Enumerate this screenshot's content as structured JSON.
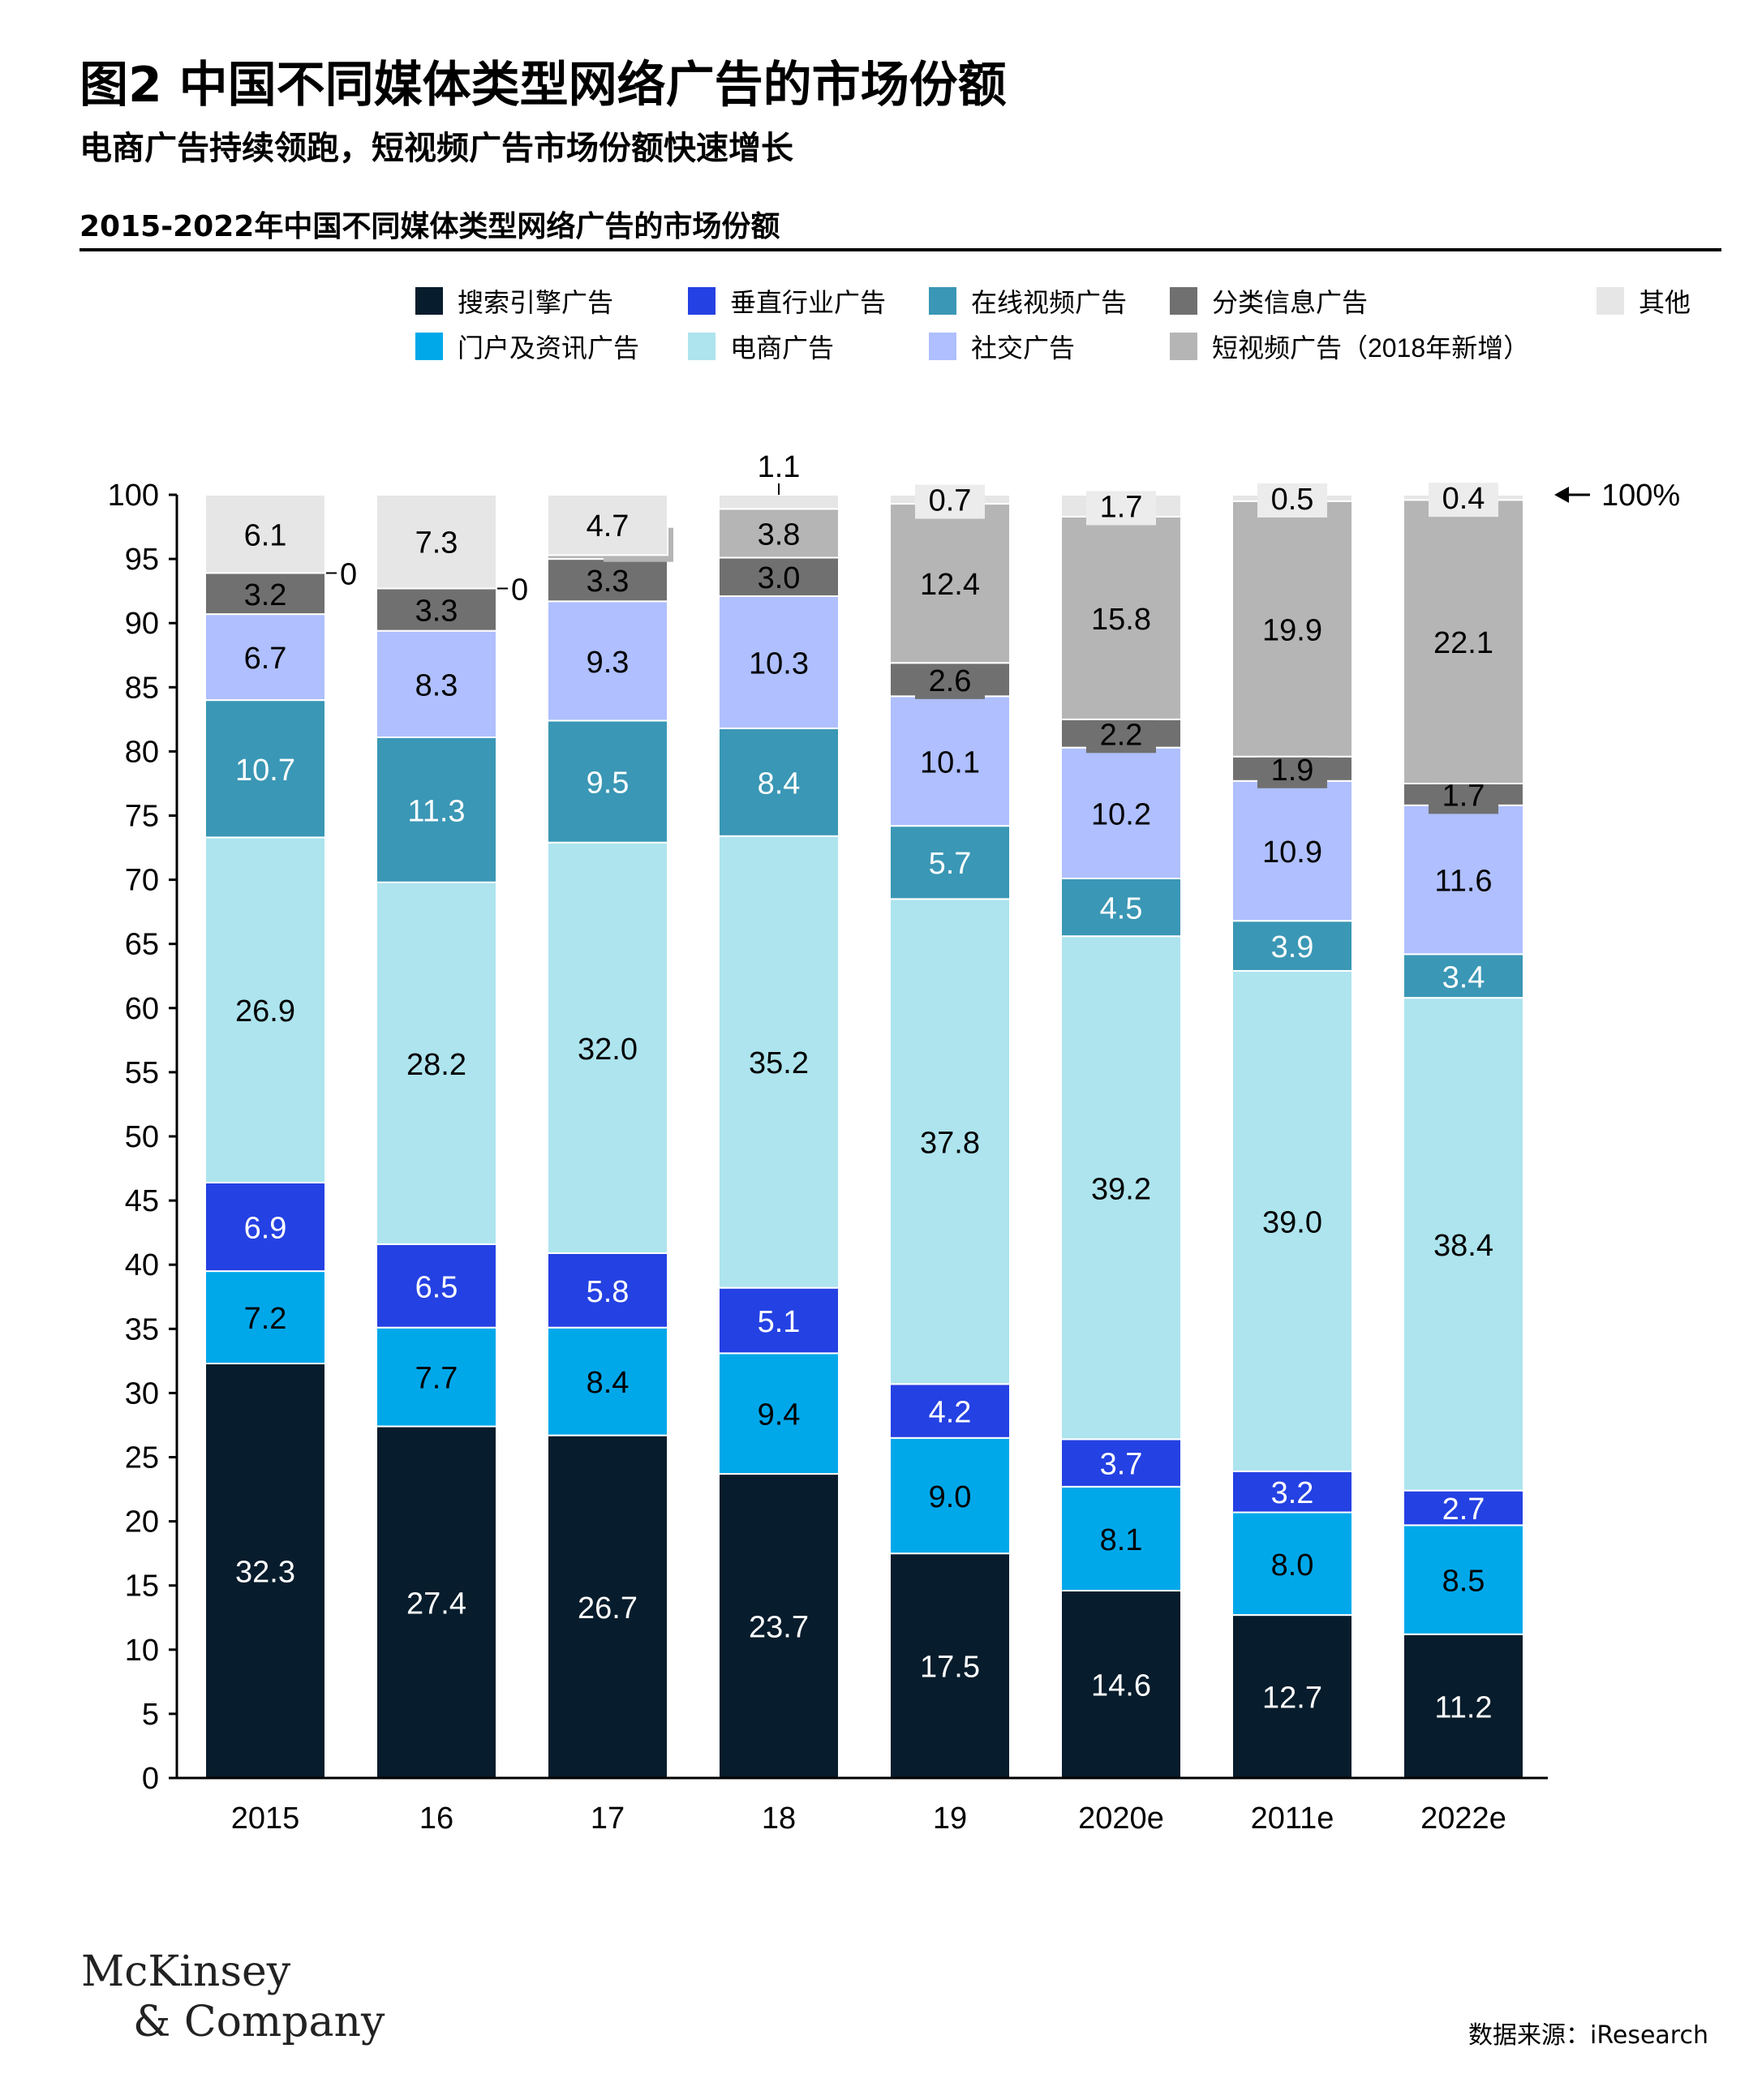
{
  "header": {
    "title": "图2 中国不同媒体类型网络广告的市场份额",
    "subtitle": "电商广告持续领跑，短视频广告市场份额快速增长",
    "chart_heading": "2015-2022年中国不同媒体类型网络广告的市场份额"
  },
  "footer": {
    "logo_line1": "McKinsey",
    "logo_line2": "& Company",
    "source": "数据来源：iResearch"
  },
  "chart_data": {
    "type": "bar",
    "stacked": true,
    "categories": [
      "2015",
      "16",
      "17",
      "18",
      "19",
      "2020e",
      "2011e",
      "2022e"
    ],
    "ylim": [
      0,
      100
    ],
    "yticks": [
      0,
      5,
      10,
      15,
      20,
      25,
      30,
      35,
      40,
      45,
      50,
      55,
      60,
      65,
      70,
      75,
      80,
      85,
      90,
      95,
      100
    ],
    "reference_label": "100%",
    "legend_position": "top",
    "series": [
      {
        "name": "搜索引擎广告",
        "color": "#071c2c",
        "label_color": "#ffffff",
        "values": [
          32.3,
          27.4,
          26.7,
          23.7,
          17.5,
          14.6,
          12.7,
          11.2
        ]
      },
      {
        "name": "门户及资讯广告",
        "color": "#00a8ea",
        "label_color": "#000000",
        "values": [
          7.2,
          7.7,
          8.4,
          9.4,
          9.0,
          8.1,
          8.0,
          8.5
        ]
      },
      {
        "name": "垂直行业广告",
        "color": "#2441e3",
        "label_color": "#ffffff",
        "values": [
          6.9,
          6.5,
          5.8,
          5.1,
          4.2,
          3.7,
          3.2,
          2.7
        ]
      },
      {
        "name": "电商广告",
        "color": "#ade4ee",
        "label_color": "#000000",
        "values": [
          26.9,
          28.2,
          32.0,
          35.2,
          37.8,
          39.2,
          39.0,
          38.4
        ]
      },
      {
        "name": "在线视频广告",
        "color": "#3a97b5",
        "label_color": "#ffffff",
        "values": [
          10.7,
          11.3,
          9.5,
          8.4,
          5.7,
          4.5,
          3.9,
          3.4
        ]
      },
      {
        "name": "社交广告",
        "color": "#afbfff",
        "label_color": "#000000",
        "values": [
          6.7,
          8.3,
          9.3,
          10.3,
          10.1,
          10.2,
          10.9,
          11.6
        ]
      },
      {
        "name": "分类信息广告",
        "color": "#707070",
        "label_color": "#000000",
        "values": [
          3.2,
          3.3,
          3.3,
          3.0,
          2.6,
          2.2,
          1.9,
          1.7
        ]
      },
      {
        "name": "短视频广告（2018年新增）",
        "color": "#b5b5b5",
        "label_color": "#000000",
        "values": [
          0,
          0,
          0.3,
          3.8,
          12.4,
          15.8,
          19.9,
          22.1
        ]
      },
      {
        "name": "其他",
        "color": "#e6e6e6",
        "label_color": "#000000",
        "values": [
          6.1,
          7.3,
          4.7,
          1.1,
          0.7,
          1.7,
          0.5,
          0.4
        ]
      }
    ],
    "legend_rows": [
      [
        "搜索引擎广告",
        "垂直行业广告",
        "在线视频广告",
        "分类信息广告",
        "其他"
      ],
      [
        "门户及资讯广告",
        "电商广告",
        "社交广告",
        "短视频广告（2018年新增）"
      ]
    ]
  }
}
